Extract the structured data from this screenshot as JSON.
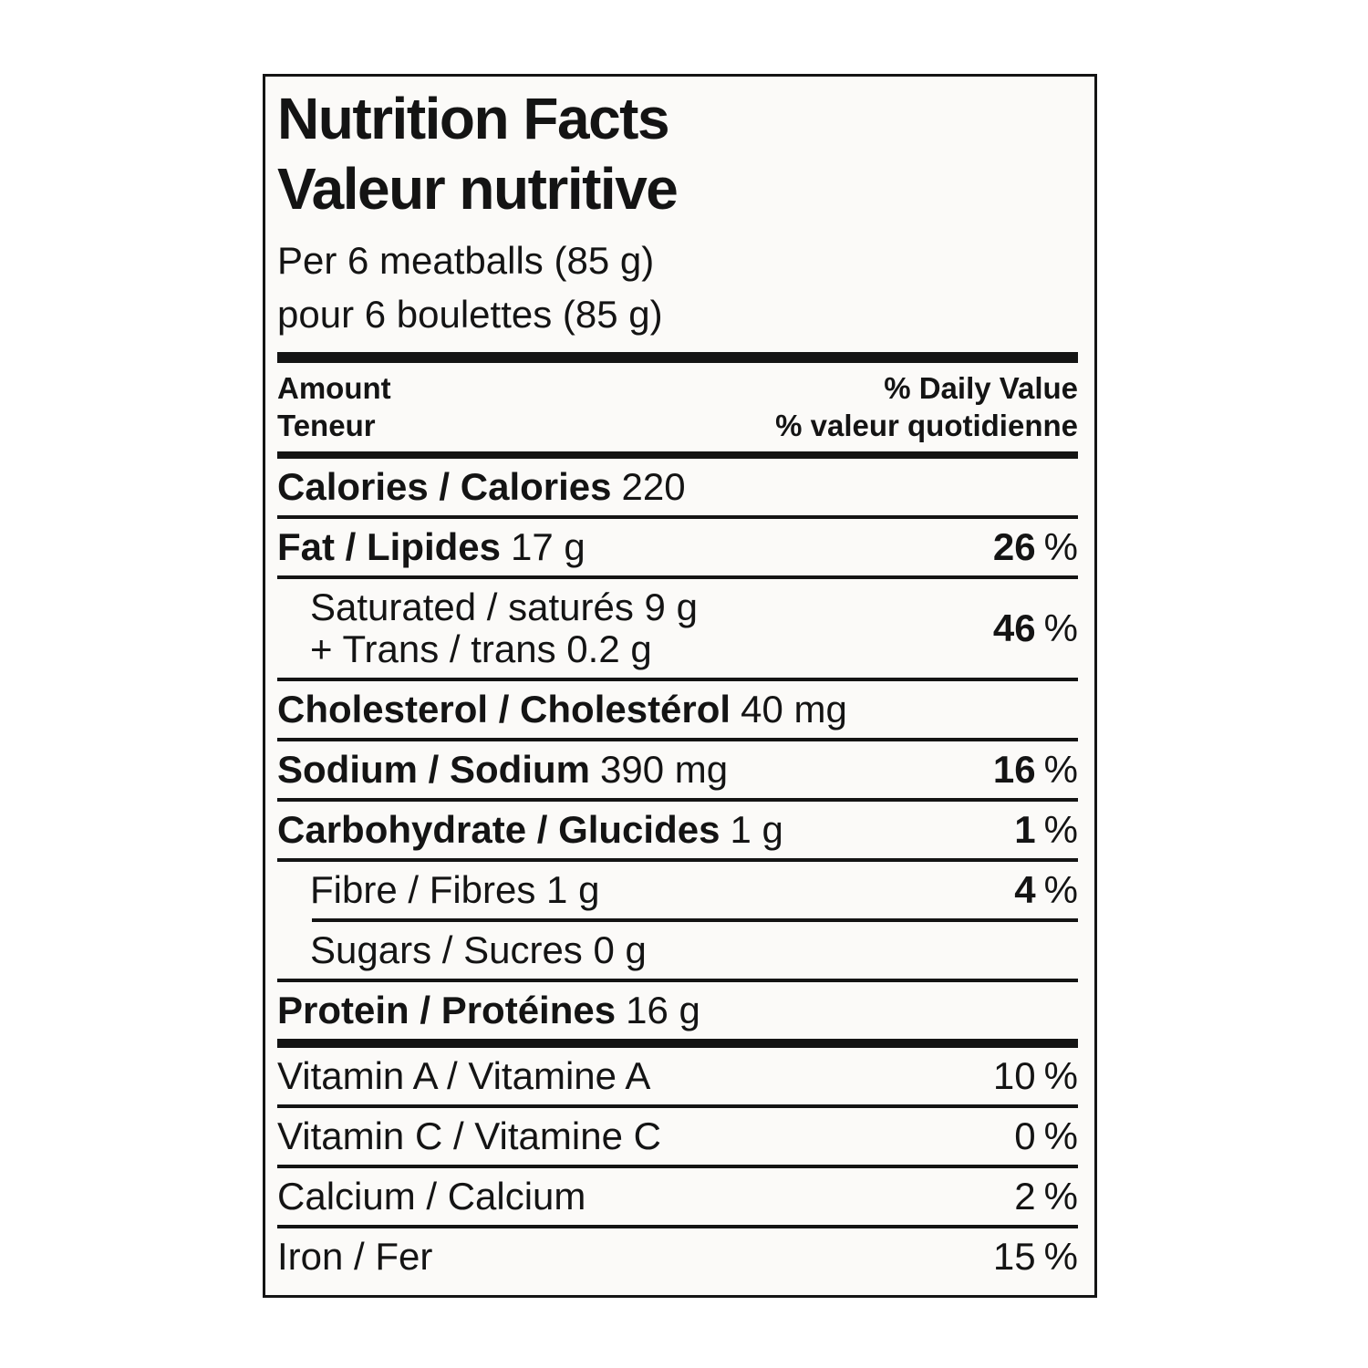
{
  "colors": {
    "ink": "#141414",
    "label_bg": "#fbfaf8",
    "page_bg": "#ffffff"
  },
  "header": {
    "title_en": "Nutrition Facts",
    "title_fr": "Valeur nutritive",
    "serving_en": "Per 6 meatballs (85 g)",
    "serving_fr": "pour 6 boulettes (85 g)"
  },
  "columns": {
    "amount_en": "Amount",
    "amount_fr": "Teneur",
    "daily_value_en": "% Daily Value",
    "daily_value_fr": "% valeur quotidienne"
  },
  "percent_sign": "%",
  "rows": {
    "calories": {
      "label": "Calories / Calories",
      "value": "220"
    },
    "fat": {
      "label": "Fat / Lipides",
      "value": "17 g",
      "pct": "26"
    },
    "saturated": {
      "line1": "Saturated / saturés 9 g",
      "line2": "+ Trans / trans 0.2 g",
      "pct": "46"
    },
    "cholesterol": {
      "label": "Cholesterol / Cholestérol",
      "value": "40 mg"
    },
    "sodium": {
      "label": "Sodium / Sodium",
      "value": "390 mg",
      "pct": "16"
    },
    "carbohydrate": {
      "label": "Carbohydrate / Glucides",
      "value": "1 g",
      "pct": "1"
    },
    "fibre": {
      "label": "Fibre / Fibres 1 g",
      "pct": "4"
    },
    "sugars": {
      "label": "Sugars / Sucres 0 g"
    },
    "protein": {
      "label": "Protein / Protéines",
      "value": "16 g"
    },
    "vitamin_a": {
      "label": "Vitamin A / Vitamine A",
      "pct": "10"
    },
    "vitamin_c": {
      "label": "Vitamin C / Vitamine C",
      "pct": "0"
    },
    "calcium": {
      "label": "Calcium / Calcium",
      "pct": "2"
    },
    "iron": {
      "label": "Iron / Fer",
      "pct": "15"
    }
  }
}
